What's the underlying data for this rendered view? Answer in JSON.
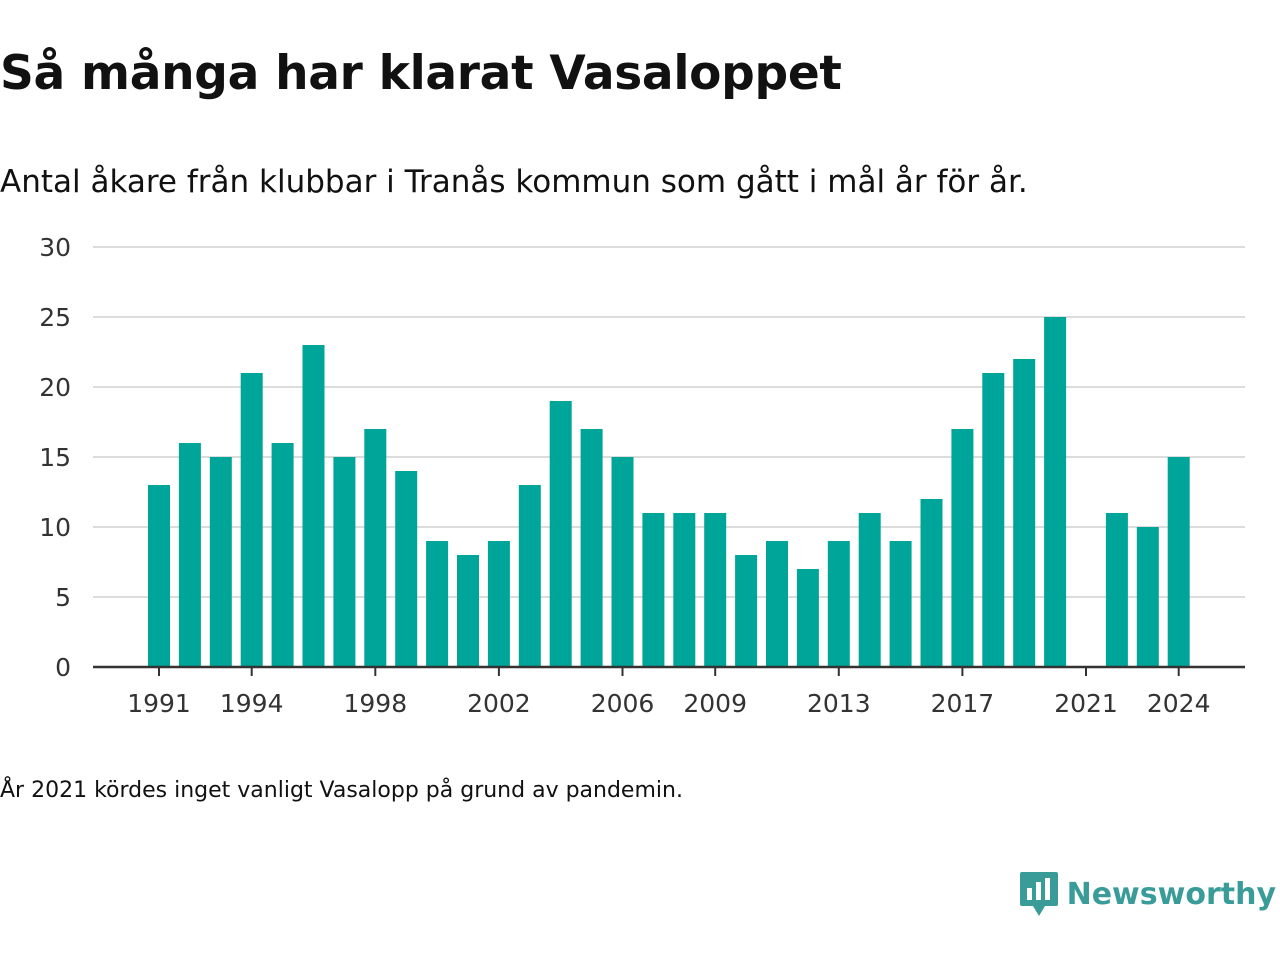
{
  "title": "Så många har klarat Vasaloppet",
  "subtitle": "Antal åkare från klubbar i Tranås kommun som gått i mål år för år.",
  "note": "År 2021 kördes inget vanligt Vasalopp på grund av pandemin.",
  "brand": {
    "name": "Newsworthy",
    "icon": "newsworthy-logo-icon",
    "color": "#3a9c98"
  },
  "chart_data": {
    "type": "bar",
    "color": "#00a59a",
    "categories": [
      "1991",
      "1992",
      "1993",
      "1994",
      "1995",
      "1996",
      "1997",
      "1998",
      "1999",
      "2000",
      "2001",
      "2002",
      "2003",
      "2004",
      "2005",
      "2006",
      "2007",
      "2008",
      "2009",
      "2010",
      "2011",
      "2012",
      "2013",
      "2014",
      "2015",
      "2016",
      "2017",
      "2018",
      "2019",
      "2020",
      "2021",
      "2022",
      "2023",
      "2024"
    ],
    "values": [
      13,
      16,
      15,
      21,
      16,
      23,
      15,
      17,
      14,
      9,
      8,
      9,
      13,
      19,
      17,
      15,
      11,
      11,
      11,
      8,
      9,
      7,
      9,
      11,
      9,
      12,
      17,
      21,
      22,
      25,
      null,
      11,
      10,
      15
    ],
    "x_tick_labels": [
      "1991",
      "1994",
      "1998",
      "2002",
      "2006",
      "2009",
      "2013",
      "2017",
      "2021",
      "2024"
    ],
    "y_ticks": [
      0,
      5,
      10,
      15,
      20,
      25,
      30
    ],
    "ylim": [
      0,
      30
    ],
    "grid": true,
    "legend": "none"
  }
}
